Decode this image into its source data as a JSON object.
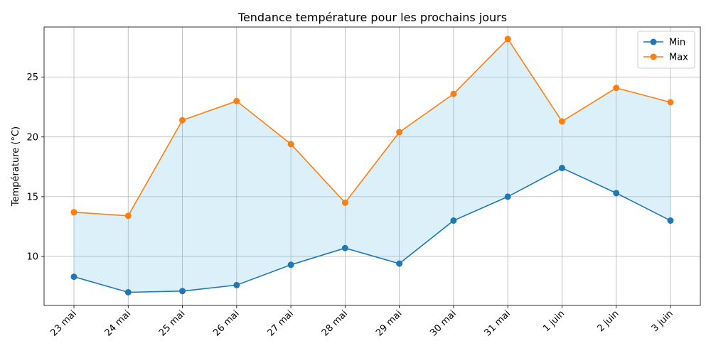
{
  "chart_data": {
    "type": "line",
    "title": "Tendance température pour les prochains jours",
    "xlabel": "",
    "ylabel": "Température (°C)",
    "categories": [
      "23 mai",
      "24 mai",
      "25 mai",
      "26 mai",
      "27 mai",
      "28 mai",
      "29 mai",
      "30 mai",
      "31 mai",
      "1 juin",
      "2 juin",
      "3 juin"
    ],
    "ylim": [
      5.9,
      29.2
    ],
    "yticks": [
      10,
      15,
      20,
      25
    ],
    "grid": true,
    "legend_position": "top-right",
    "fill_between": {
      "lower": "Min",
      "upper": "Max",
      "color": "#87ceeb",
      "opacity": 0.3
    },
    "series": [
      {
        "name": "Min",
        "color": "#1f77b4",
        "values": [
          8.3,
          7.0,
          7.1,
          7.6,
          9.3,
          10.7,
          9.4,
          13.0,
          15.0,
          17.4,
          15.3,
          13.0
        ]
      },
      {
        "name": "Max",
        "color": "#ff7f0e",
        "values": [
          13.7,
          13.4,
          21.4,
          23.0,
          19.4,
          14.5,
          20.4,
          23.6,
          28.2,
          21.3,
          24.1,
          22.9
        ]
      }
    ]
  }
}
